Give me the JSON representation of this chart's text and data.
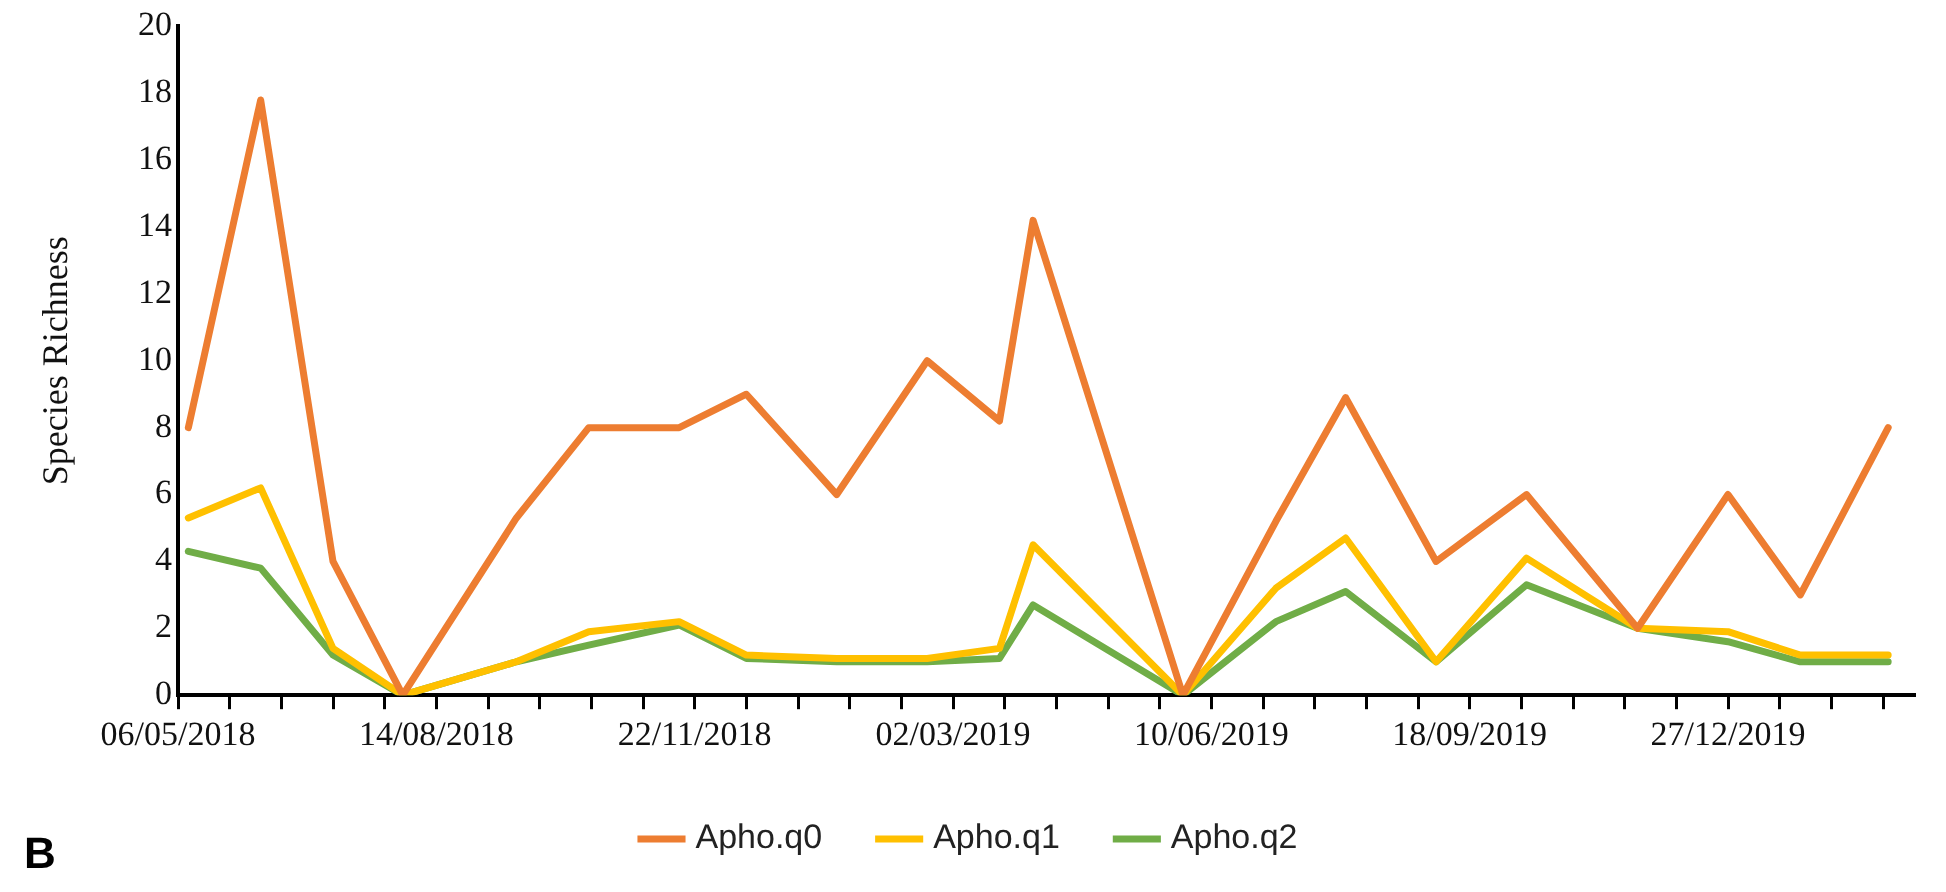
{
  "chart_data": {
    "type": "line",
    "ylabel": "Species Richness",
    "annotations": [
      "B"
    ],
    "x": [
      "2018-05-10",
      "2018-06-07",
      "2018-07-05",
      "2018-08-01",
      "2018-09-14",
      "2018-10-12",
      "2018-11-16",
      "2018-12-12",
      "2019-01-16",
      "2019-02-20",
      "2019-03-20",
      "2019-04-02",
      "2019-05-30",
      "2019-07-05",
      "2019-08-01",
      "2019-09-05",
      "2019-10-10",
      "2019-11-22",
      "2019-12-27",
      "2020-01-24",
      "2020-02-27"
    ],
    "series": [
      {
        "name": "Apho.q0",
        "color": "#ed7d31",
        "values": [
          8,
          17.8,
          4,
          0,
          5.3,
          8,
          8,
          9,
          6,
          10,
          8.2,
          14.2,
          0,
          5.2,
          8.9,
          4,
          6,
          2,
          6,
          3,
          8
        ]
      },
      {
        "name": "Apho.q1",
        "color": "#ffc000",
        "values": [
          5.3,
          6.2,
          1.4,
          0,
          1.0,
          1.9,
          2.2,
          1.2,
          1.1,
          1.1,
          1.4,
          4.5,
          0,
          3.2,
          4.7,
          1.0,
          4.1,
          2.0,
          1.9,
          1.2,
          1.2
        ]
      },
      {
        "name": "Apho.q2",
        "color": "#70ad47",
        "values": [
          4.3,
          3.8,
          1.2,
          0,
          1.0,
          1.5,
          2.1,
          1.1,
          1.0,
          1.0,
          1.1,
          2.7,
          0,
          2.2,
          3.1,
          1.0,
          3.3,
          2.0,
          1.6,
          1.0,
          1.0
        ]
      }
    ],
    "xlim": [
      "2018-05-06",
      "2020-03-08"
    ],
    "xticks": [
      {
        "value": "2018-05-06",
        "label": "06/05/2018"
      },
      {
        "value": "2018-05-26",
        "label": null
      },
      {
        "value": "2018-06-15",
        "label": null
      },
      {
        "value": "2018-07-05",
        "label": null
      },
      {
        "value": "2018-07-25",
        "label": null
      },
      {
        "value": "2018-08-14",
        "label": "14/08/2018"
      },
      {
        "value": "2018-09-03",
        "label": null
      },
      {
        "value": "2018-09-23",
        "label": null
      },
      {
        "value": "2018-10-13",
        "label": null
      },
      {
        "value": "2018-11-02",
        "label": null
      },
      {
        "value": "2018-11-22",
        "label": "22/11/2018"
      },
      {
        "value": "2018-12-12",
        "label": null
      },
      {
        "value": "2019-01-01",
        "label": null
      },
      {
        "value": "2019-01-21",
        "label": null
      },
      {
        "value": "2019-02-10",
        "label": null
      },
      {
        "value": "2019-03-02",
        "label": "02/03/2019"
      },
      {
        "value": "2019-03-22",
        "label": null
      },
      {
        "value": "2019-04-11",
        "label": null
      },
      {
        "value": "2019-05-01",
        "label": null
      },
      {
        "value": "2019-05-21",
        "label": null
      },
      {
        "value": "2019-06-10",
        "label": "10/06/2019"
      },
      {
        "value": "2019-06-30",
        "label": null
      },
      {
        "value": "2019-07-20",
        "label": null
      },
      {
        "value": "2019-08-09",
        "label": null
      },
      {
        "value": "2019-08-29",
        "label": null
      },
      {
        "value": "2019-09-18",
        "label": "18/09/2019"
      },
      {
        "value": "2019-10-08",
        "label": null
      },
      {
        "value": "2019-10-28",
        "label": null
      },
      {
        "value": "2019-11-17",
        "label": null
      },
      {
        "value": "2019-12-07",
        "label": null
      },
      {
        "value": "2019-12-27",
        "label": "27/12/2019"
      },
      {
        "value": "2020-01-16",
        "label": null
      },
      {
        "value": "2020-02-05",
        "label": null
      },
      {
        "value": "2020-02-25",
        "label": null
      }
    ],
    "ylim": [
      0,
      20
    ],
    "yticks": [
      0,
      2,
      4,
      6,
      8,
      10,
      12,
      14,
      16,
      18,
      20
    ],
    "grid": false,
    "legend": "bottom",
    "marker": "none",
    "line_style": "solid"
  }
}
